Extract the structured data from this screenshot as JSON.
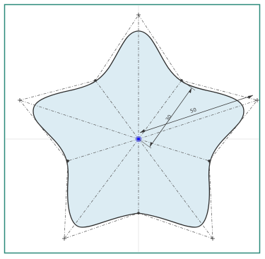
{
  "colors": {
    "frame": "#2a8a7a",
    "shape_fill": "#dcecf3",
    "shape_stroke": "#2b2b2b",
    "construction_line": "#555555",
    "guide_line": "#d8d8d8",
    "center_point": "#1a1aff"
  },
  "dimensions": {
    "inner_radius_label": "30",
    "outer_radius_label": "50"
  }
}
